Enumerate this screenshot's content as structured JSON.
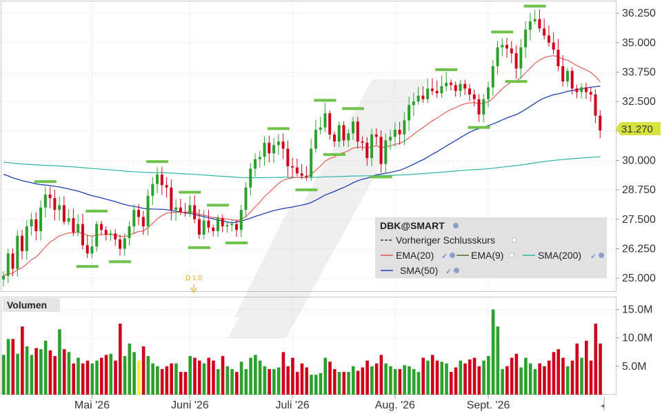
{
  "chart_data": {
    "type": "candlestick",
    "ticker": "DBK@SMART",
    "price_axis": {
      "ticks": [
        "36.250",
        "35.000",
        "33.750",
        "32.500",
        "31.250",
        "30.000",
        "28.750",
        "27.500",
        "26.250",
        "25.000"
      ],
      "tick_values": [
        36.25,
        35.0,
        33.75,
        32.5,
        31.25,
        30.0,
        28.75,
        27.5,
        26.25,
        25.0
      ],
      "range": [
        24.45,
        36.75
      ],
      "last_price_label": "31.270",
      "last_price": 31.27
    },
    "volume_axis": {
      "title": "Volumen",
      "ticks": [
        "15.0M",
        "10.0M",
        "5.0M"
      ],
      "tick_values": [
        15000000,
        10000000,
        5000000
      ],
      "range": [
        0,
        17000000
      ]
    },
    "x_axis": {
      "month_labels": [
        "Mai '26",
        "Juni '26",
        "Juli '26",
        "Aug. '26",
        "Sept. '26"
      ],
      "month_start_index": [
        19,
        40,
        62,
        84,
        104
      ]
    },
    "dividend_marker": {
      "label": "D 1.0",
      "index": 40
    },
    "legend": {
      "title": "DBK@SMART",
      "items": [
        {
          "name": "Vorheriger Schlusskurs",
          "color": "#333333",
          "dashed": true
        },
        {
          "name": "EMA(20)",
          "color": "#e8504a"
        },
        {
          "name": "EMA(9)",
          "color": "#556b2f"
        },
        {
          "name": "SMA(200)",
          "color": "#2bb5a8"
        },
        {
          "name": "SMA(50)",
          "color": "#1f3fb4"
        }
      ]
    },
    "colors": {
      "up": "#2ca02c",
      "down": "#d0021b",
      "highlight_volume": "#ffee22",
      "swing_marker": "#6fc24a",
      "last_price_bg": "#d5e23f"
    },
    "closes": [
      25.1,
      26.05,
      25.4,
      26.8,
      26.15,
      27.2,
      27.5,
      27.0,
      28.0,
      28.55,
      28.4,
      27.9,
      28.1,
      27.4,
      27.55,
      26.95,
      27.3,
      26.4,
      26.05,
      26.35,
      27.3,
      27.05,
      26.85,
      26.9,
      26.65,
      26.25,
      26.7,
      27.2,
      27.9,
      27.6,
      27.2,
      28.5,
      29.0,
      29.4,
      28.95,
      28.85,
      27.9,
      28.0,
      27.8,
      27.75,
      28.1,
      27.5,
      26.85,
      27.45,
      27.15,
      27.0,
      27.55,
      27.2,
      27.25,
      27.3,
      27.05,
      27.9,
      28.85,
      29.65,
      30.05,
      30.15,
      30.75,
      30.3,
      30.65,
      30.8,
      30.5,
      29.75,
      29.7,
      29.45,
      29.35,
      29.3,
      30.5,
      31.3,
      31.4,
      32.0,
      31.1,
      30.8,
      31.5,
      30.85,
      31.15,
      31.65,
      30.8,
      30.75,
      30.1,
      31.1,
      31.0,
      29.85,
      30.85,
      31.0,
      31.3,
      31.1,
      31.7,
      32.35,
      32.5,
      32.75,
      32.6,
      33.05,
      32.95,
      32.85,
      33.15,
      33.3,
      33.2,
      32.95,
      33.25,
      33.05,
      32.8,
      32.6,
      31.95,
      32.6,
      33.1,
      34.0,
      34.8,
      34.9,
      34.75,
      34.55,
      33.9,
      34.8,
      35.55,
      35.9,
      36.0,
      35.6,
      35.3,
      35.0,
      34.7,
      34.0,
      33.35,
      33.8,
      33.05,
      32.9,
      33.1,
      32.9,
      32.8,
      31.9,
      31.27
    ],
    "opens": [
      24.95,
      25.1,
      26.05,
      25.4,
      26.8,
      26.15,
      27.2,
      27.5,
      27.0,
      28.0,
      28.55,
      28.4,
      27.9,
      28.1,
      27.4,
      27.55,
      26.95,
      27.3,
      26.4,
      26.05,
      26.35,
      27.3,
      27.05,
      26.85,
      26.9,
      26.65,
      26.25,
      26.7,
      27.2,
      27.9,
      27.6,
      27.2,
      28.5,
      29.0,
      29.4,
      28.95,
      28.85,
      27.9,
      28.0,
      27.8,
      27.75,
      28.1,
      27.5,
      26.85,
      27.45,
      27.15,
      27.0,
      27.55,
      27.2,
      27.25,
      27.3,
      27.05,
      27.9,
      28.85,
      29.65,
      30.05,
      30.15,
      30.75,
      30.3,
      30.65,
      30.8,
      30.5,
      29.75,
      29.7,
      29.45,
      29.35,
      29.3,
      30.5,
      31.3,
      31.4,
      32.0,
      31.1,
      30.8,
      31.5,
      30.85,
      31.15,
      31.65,
      30.8,
      30.75,
      30.1,
      31.1,
      31.0,
      29.85,
      30.85,
      31.0,
      31.3,
      31.1,
      31.7,
      32.35,
      32.5,
      32.75,
      32.6,
      33.05,
      32.95,
      32.85,
      33.15,
      33.3,
      33.2,
      32.95,
      33.25,
      33.05,
      32.8,
      32.6,
      31.95,
      32.6,
      33.1,
      34.0,
      34.8,
      34.9,
      34.75,
      34.55,
      33.9,
      34.8,
      35.55,
      35.9,
      36.0,
      35.6,
      35.3,
      35.0,
      34.7,
      34.0,
      33.35,
      33.8,
      33.05,
      32.9,
      33.1,
      32.9,
      32.8,
      31.9
    ],
    "volumes_m": [
      7.0,
      9.8,
      9.8,
      7.2,
      12.0,
      8.5,
      7.0,
      8.2,
      8.0,
      9.5,
      7.8,
      6.8,
      11.5,
      8.0,
      7.5,
      5.5,
      6.5,
      5.5,
      6.0,
      5.5,
      6.0,
      6.5,
      7.0,
      7.2,
      6.0,
      12.5,
      6.8,
      9.0,
      7.5,
      6.0,
      8.5,
      6.8,
      5.5,
      5.0,
      4.5,
      5.0,
      5.5,
      5.5,
      4.0,
      4.0,
      6.8,
      6.5,
      6.0,
      5.5,
      6.5,
      6.0,
      4.5,
      6.8,
      5.0,
      4.5,
      4.0,
      5.8,
      4.5,
      6.5,
      7.0,
      6.0,
      5.0,
      4.5,
      4.5,
      4.8,
      7.5,
      5.0,
      6.5,
      4.0,
      5.5,
      4.8,
      3.5,
      3.5,
      3.8,
      6.5,
      5.8,
      4.5,
      4.0,
      4.0,
      4.0,
      5.0,
      4.2,
      4.8,
      6.0,
      5.0,
      5.5,
      7.0,
      5.5,
      5.0,
      4.5,
      4.5,
      5.2,
      5.0,
      4.5,
      4.0,
      6.5,
      6.0,
      7.0,
      6.0,
      5.8,
      5.5,
      4.0,
      4.8,
      6.0,
      5.5,
      6.2,
      6.5,
      5.0,
      6.0,
      6.8,
      15.0,
      12.0,
      4.5,
      5.0,
      6.5,
      7.2,
      4.8,
      6.5,
      5.5,
      4.5,
      5.5,
      5.0,
      6.0,
      7.5,
      8.0,
      6.5,
      5.0,
      6.0,
      9.0,
      6.5,
      9.5,
      6.0,
      12.5,
      9.0
    ]
  }
}
